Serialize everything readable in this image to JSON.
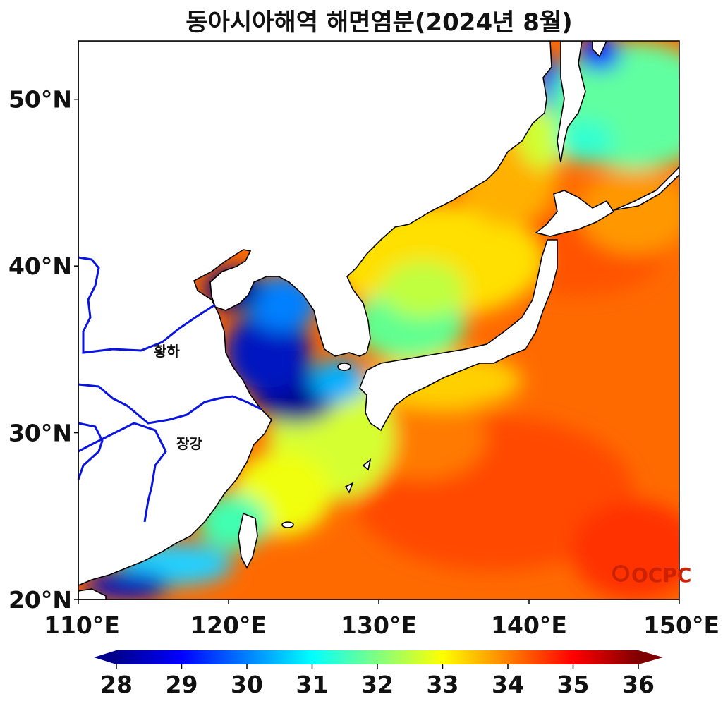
{
  "title": "동아시아해역 해면염분(2024년 8월)",
  "map": {
    "lon_range": [
      110,
      150
    ],
    "lat_range": [
      20,
      53.5
    ],
    "lon_ticks": [
      "110°E",
      "120°E",
      "130°E",
      "140°E",
      "150°E"
    ],
    "lat_ticks": [
      "20°N",
      "30°N",
      "40°N",
      "50°N"
    ],
    "river_labels": [
      "황하",
      "장강"
    ],
    "logo_text": "OCPC"
  },
  "colorbar": {
    "min": 28,
    "max": 36,
    "extend": "both",
    "colormap": "jet",
    "ticks": [
      "28",
      "29",
      "30",
      "31",
      "32",
      "33",
      "34",
      "35",
      "36"
    ]
  },
  "colors": {
    "low_salinity": "#00008f",
    "mid_salinity": "#7dff7a",
    "high_salinity": "#ff4000",
    "river": "#0a14e0",
    "coastline": "#000000",
    "logo": "#cc2200"
  }
}
